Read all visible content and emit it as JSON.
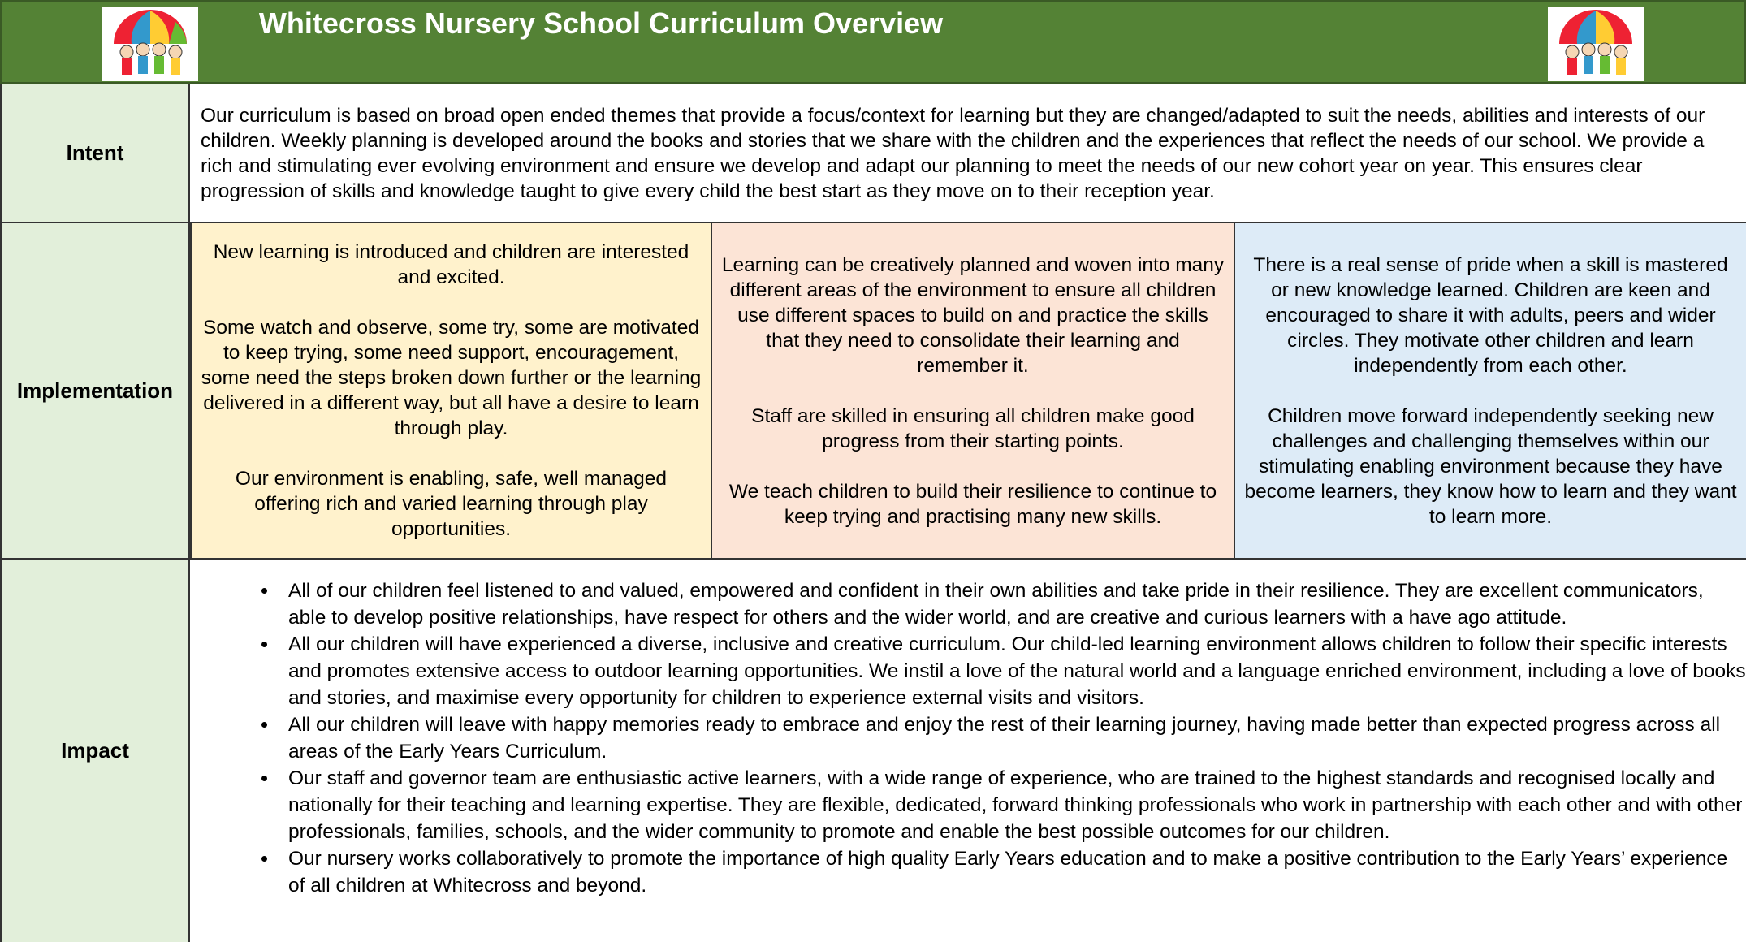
{
  "header": {
    "title": "Whitecross Nursery School  Curriculum Overview"
  },
  "intent": {
    "label": "Intent",
    "text": "Our curriculum is based on broad open ended themes that provide a focus/context for learning but they are changed/adapted to suit the needs, abilities and interests of our children.  Weekly planning is developed around the books and stories that we share with the children and the experiences that reflect the needs of our school.  We provide a rich and stimulating ever evolving environment and ensure we develop and adapt our planning to meet the needs of our new cohort year on year.  This ensures clear progression of skills and knowledge taught to give every child the best start as they move on to their reception year."
  },
  "implementation": {
    "label": "Implementation",
    "columns": [
      [
        "New learning is introduced and children are interested and excited.",
        "Some watch and observe, some try, some are motivated to keep trying, some need support, encouragement, some need the steps broken down further or the learning delivered in a different way, but all have a desire to learn through play.",
        "Our environment is enabling, safe, well managed offering rich and varied learning through play opportunities."
      ],
      [
        "Learning can be creatively planned and woven into many different areas of the environment to ensure all children use different spaces to build on and practice the skills that they need to consolidate their learning and remember it.",
        "Staff are skilled in ensuring all children make good progress from their starting points.",
        "We teach children to build their resilience to continue to keep trying and practising many new skills."
      ],
      [
        "There is a real sense of pride when a skill is mastered or new knowledge learned.  Children are keen and encouraged to share it with adults, peers and wider circles.  They motivate other children and learn independently from each other.",
        "Children move forward independently seeking new challenges and challenging themselves within our stimulating enabling environment because they have become learners, they know how to learn and they want to learn more."
      ]
    ]
  },
  "impact": {
    "label": "Impact",
    "bullets": [
      "All of our children feel listened to and valued, empowered and confident in their own abilities and take pride in their resilience.  They are excellent communicators, able to develop positive relationships, have respect for others and the wider world, and are creative and curious learners with a have ago attitude.",
      "All our children will have experienced a diverse, inclusive and creative curriculum.  Our child-led learning environment allows children to follow their specific interests and promotes extensive access to outdoor learning opportunities.  We instil a love of the natural world and a language enriched environment, including a love of books and stories, and maximise every opportunity for children to experience external visits and visitors.",
      "All our children will leave with happy memories ready to embrace and enjoy the rest of their learning journey, having made better than expected progress across all areas of the Early Years Curriculum.",
      "Our staff and governor team are enthusiastic active learners, with a wide range of experience, who are trained to the highest standards and recognised locally and nationally for their teaching and learning expertise.  They are flexible, dedicated, forward thinking professionals who work in partnership with each other and with other professionals, families, schools, and the wider community to promote and enable the best possible outcomes for our children.",
      "Our nursery works collaboratively to promote the importance of high quality Early Years education and to make a positive contribution to the Early Years’ experience of all children at Whitecross and beyond."
    ]
  }
}
